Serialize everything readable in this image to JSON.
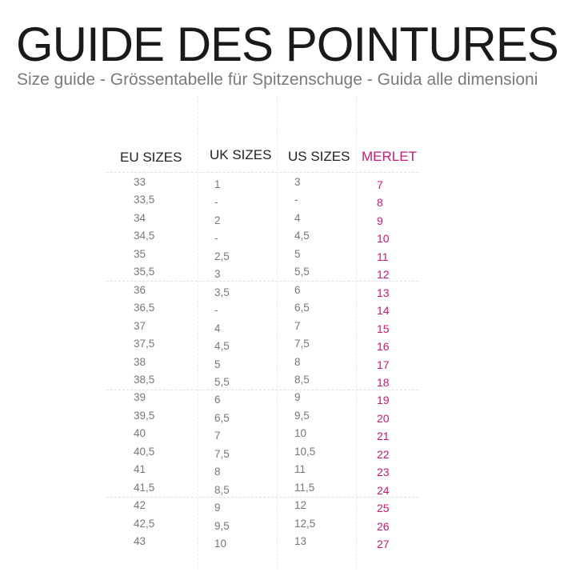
{
  "title": "GUIDE DES POINTURES",
  "subtitle": "Size guide - Grössentabelle für Spitzenschuge - Guida alle dimensioni",
  "colors": {
    "accent": "#c8187a",
    "text": "#777777"
  },
  "table": {
    "headers": [
      "EU SIZES",
      "UK SIZES",
      "US SIZES",
      "MERLET"
    ],
    "rows": [
      [
        "33",
        "1",
        "3",
        "7"
      ],
      [
        "33,5",
        "-",
        "-",
        "8"
      ],
      [
        "34",
        "2",
        "4",
        "9"
      ],
      [
        "34,5",
        "-",
        "4,5",
        "10"
      ],
      [
        "35",
        "2,5",
        "5",
        "11"
      ],
      [
        "35,5",
        "3",
        "5,5",
        "12"
      ],
      [
        "36",
        "3,5",
        "6",
        "13"
      ],
      [
        "36,5",
        "-",
        "6,5",
        "14"
      ],
      [
        "37",
        "4",
        "7",
        "15"
      ],
      [
        "37,5",
        "4,5",
        "7,5",
        "16"
      ],
      [
        "38",
        "5",
        "8",
        "17"
      ],
      [
        "38,5",
        "5,5",
        "8,5",
        "18"
      ],
      [
        "39",
        "6",
        "9",
        "19"
      ],
      [
        "39,5",
        "6,5",
        "9,5",
        "20"
      ],
      [
        "40",
        "7",
        "10",
        "21"
      ],
      [
        "40,5",
        "7,5",
        "10,5",
        "22"
      ],
      [
        "41",
        "8",
        "11",
        "23"
      ],
      [
        "41,5",
        "8,5",
        "11,5",
        "24"
      ],
      [
        "42",
        "9",
        "12",
        "25"
      ],
      [
        "42,5",
        "9,5",
        "12,5",
        "26"
      ],
      [
        "43",
        "10",
        "13",
        "27"
      ]
    ]
  }
}
